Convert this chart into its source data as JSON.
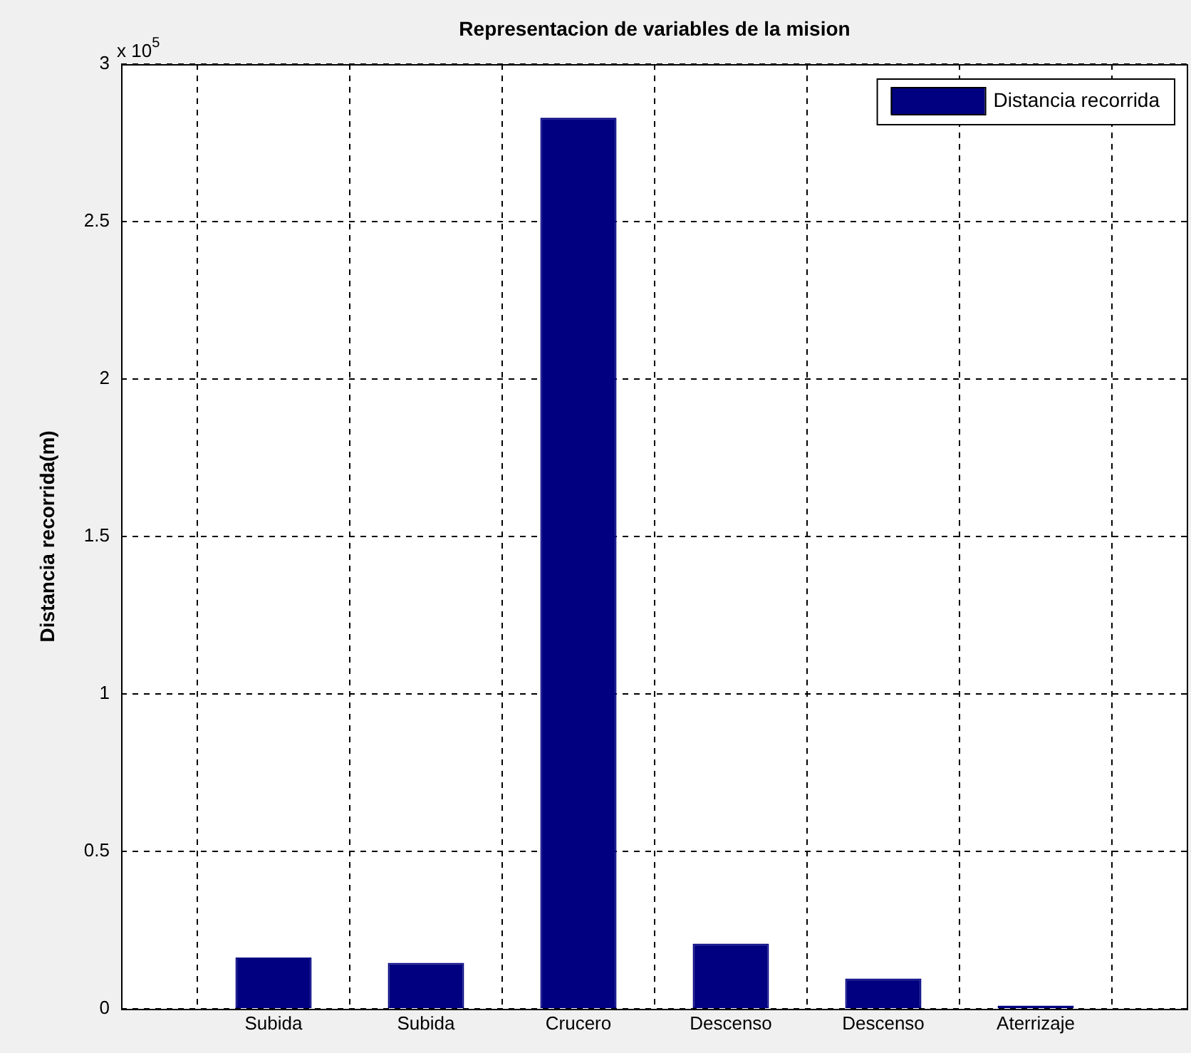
{
  "chart_data": {
    "type": "bar",
    "title": "Representacion de variables de la mision",
    "ylabel": "Distancia recorrida(m)",
    "categories": [
      "Subida",
      "Subida",
      "Crucero",
      "Descenso",
      "Descenso",
      "Aterrizaje"
    ],
    "series": [
      {
        "name": "Distancia recorrida",
        "color": "#000080",
        "values": [
          0.163,
          0.146,
          2.83,
          0.207,
          0.096,
          0.01
        ]
      }
    ],
    "ylim": [
      0,
      3
    ],
    "yticks": [
      0,
      0.5,
      1,
      1.5,
      2,
      2.5,
      3
    ],
    "annotations": [
      "x 10$^{5}$"
    ],
    "grid": true,
    "legend": "top right"
  }
}
